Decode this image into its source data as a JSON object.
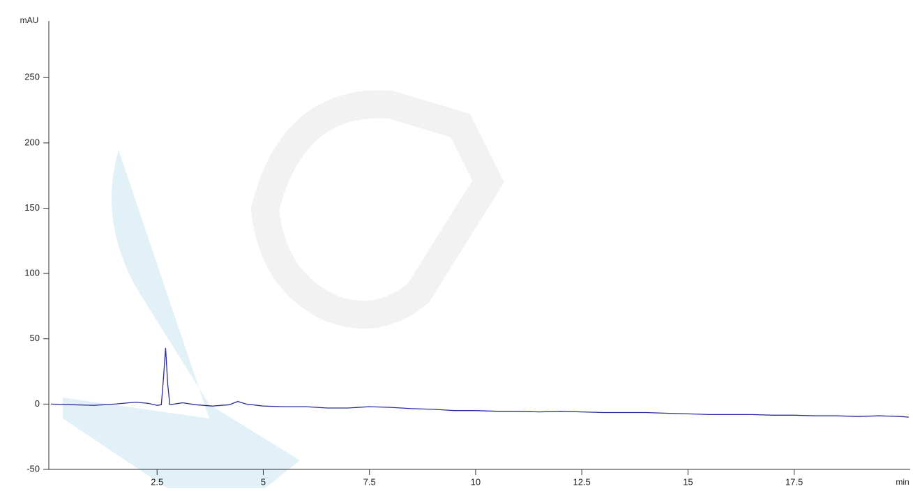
{
  "chart_data": {
    "type": "line",
    "y_label": "mAU",
    "x_label": "min",
    "x": [
      0,
      0.5,
      1.0,
      1.5,
      2.0,
      2.3,
      2.5,
      2.6,
      2.65,
      2.7,
      2.75,
      2.8,
      2.9,
      3.1,
      3.4,
      3.8,
      4.2,
      4.4,
      4.6,
      5.0,
      5.5,
      6.0,
      6.5,
      7.0,
      7.5,
      8.0,
      8.5,
      9.0,
      9.5,
      10.0,
      10.5,
      11.0,
      11.5,
      12.0,
      12.5,
      13.0,
      13.5,
      14.0,
      14.5,
      15.0,
      15.5,
      16.0,
      16.5,
      17.0,
      17.5,
      18.0,
      18.5,
      19.0,
      19.5,
      20.0,
      20.2
    ],
    "series": [
      {
        "color": "#2b2b9c",
        "values": [
          0,
          -0.5,
          -1,
          0,
          1.5,
          0.5,
          -1,
          -0.5,
          20,
          43,
          15,
          -0.5,
          0,
          1,
          -0.5,
          -1.5,
          -0.5,
          2,
          0,
          -1.5,
          -2,
          -2,
          -3,
          -3,
          -2,
          -2.5,
          -3.5,
          -4,
          -5,
          -5,
          -5.5,
          -5.5,
          -6,
          -5.5,
          -6,
          -6.5,
          -6.5,
          -6.5,
          -7,
          -7.5,
          -8,
          -8,
          -8,
          -8.5,
          -8.5,
          -9,
          -9,
          -9.5,
          -9,
          -9.5,
          -10
        ]
      }
    ],
    "xlim": [
      0,
      20.2
    ],
    "ylim": [
      -50,
      295
    ],
    "xticks": [
      2.5,
      5,
      7.5,
      10,
      12.5,
      15,
      17.5
    ],
    "yticks": [
      -50,
      0,
      50,
      100,
      150,
      200,
      250
    ]
  }
}
